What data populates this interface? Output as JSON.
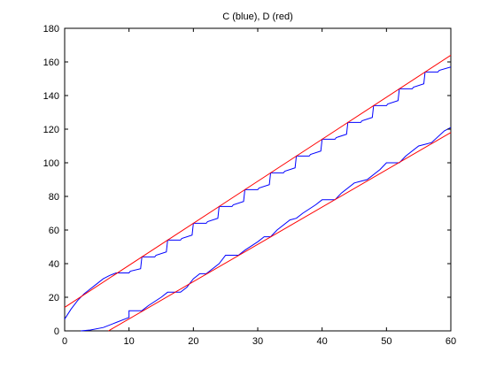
{
  "chart_data": {
    "type": "line",
    "title": "C (blue), D (red)",
    "xlabel": "",
    "ylabel": "",
    "xlim": [
      0,
      60
    ],
    "ylim": [
      0,
      180
    ],
    "xticks": [
      0,
      10,
      20,
      30,
      40,
      50,
      60
    ],
    "yticks": [
      0,
      20,
      40,
      60,
      80,
      100,
      120,
      140,
      160,
      180
    ],
    "grid": false,
    "legend": "none",
    "colors": {
      "blue": "#0000ff",
      "red": "#ff0000",
      "axis": "#000000",
      "background": "#ffffff"
    },
    "series": [
      {
        "color": "#0000ff",
        "points": [
          [
            0,
            7
          ],
          [
            1,
            13
          ],
          [
            2,
            18
          ],
          [
            3,
            22
          ],
          [
            4,
            25
          ],
          [
            5,
            28
          ],
          [
            6,
            31
          ],
          [
            7,
            33
          ],
          [
            8,
            34.5
          ],
          [
            10,
            34.5
          ],
          [
            10.2,
            35.5
          ],
          [
            11.8,
            37
          ],
          [
            12,
            44
          ],
          [
            14,
            44
          ],
          [
            14.2,
            45
          ],
          [
            15.8,
            47
          ],
          [
            16,
            54
          ],
          [
            18,
            54
          ],
          [
            18.2,
            55
          ],
          [
            19.8,
            57
          ],
          [
            20,
            64
          ],
          [
            22,
            64
          ],
          [
            22.2,
            65
          ],
          [
            23.8,
            67
          ],
          [
            24,
            74
          ],
          [
            26,
            74
          ],
          [
            26.2,
            75
          ],
          [
            27.8,
            77
          ],
          [
            28,
            84
          ],
          [
            30,
            84
          ],
          [
            30.2,
            85
          ],
          [
            31.8,
            87
          ],
          [
            32,
            94
          ],
          [
            34,
            94
          ],
          [
            34.2,
            95
          ],
          [
            35.8,
            97
          ],
          [
            36,
            104
          ],
          [
            38,
            104
          ],
          [
            38.2,
            105
          ],
          [
            39.8,
            107
          ],
          [
            40,
            114
          ],
          [
            42,
            114
          ],
          [
            42.2,
            115
          ],
          [
            43.8,
            117
          ],
          [
            44,
            124
          ],
          [
            46,
            124
          ],
          [
            46.2,
            125
          ],
          [
            47.8,
            127
          ],
          [
            48,
            134
          ],
          [
            50,
            134
          ],
          [
            50.2,
            135
          ],
          [
            51.8,
            137
          ],
          [
            52,
            144
          ],
          [
            54,
            144
          ],
          [
            54.2,
            145
          ],
          [
            55.8,
            147
          ],
          [
            56,
            154
          ],
          [
            58,
            154
          ],
          [
            58.2,
            155
          ],
          [
            60,
            157
          ]
        ]
      },
      {
        "color": "#0000ff",
        "points": [
          [
            2.5,
            0
          ],
          [
            4,
            0.5
          ],
          [
            6,
            2
          ],
          [
            8,
            5
          ],
          [
            10,
            8
          ],
          [
            10,
            12
          ],
          [
            12,
            12
          ],
          [
            13,
            15
          ],
          [
            15,
            20
          ],
          [
            16,
            23
          ],
          [
            18,
            23
          ],
          [
            19,
            26
          ],
          [
            20,
            31
          ],
          [
            21,
            34
          ],
          [
            22,
            34
          ],
          [
            24,
            40
          ],
          [
            25,
            45
          ],
          [
            27,
            45
          ],
          [
            28,
            48
          ],
          [
            30,
            53
          ],
          [
            31,
            56
          ],
          [
            32,
            56
          ],
          [
            33,
            60
          ],
          [
            35,
            66
          ],
          [
            36,
            67
          ],
          [
            37,
            70
          ],
          [
            39,
            75
          ],
          [
            40,
            78
          ],
          [
            42,
            78
          ],
          [
            43,
            82
          ],
          [
            45,
            88
          ],
          [
            46,
            89
          ],
          [
            47,
            90
          ],
          [
            49,
            96
          ],
          [
            50,
            100
          ],
          [
            52,
            100
          ],
          [
            53,
            104
          ],
          [
            55,
            110
          ],
          [
            56,
            111
          ],
          [
            57,
            112
          ],
          [
            59,
            119
          ],
          [
            60,
            121
          ]
        ]
      },
      {
        "color": "#ff0000",
        "points": [
          [
            0,
            14
          ],
          [
            60,
            164
          ]
        ]
      },
      {
        "color": "#ff0000",
        "points": [
          [
            6.8,
            0
          ],
          [
            60,
            118
          ]
        ]
      }
    ]
  }
}
